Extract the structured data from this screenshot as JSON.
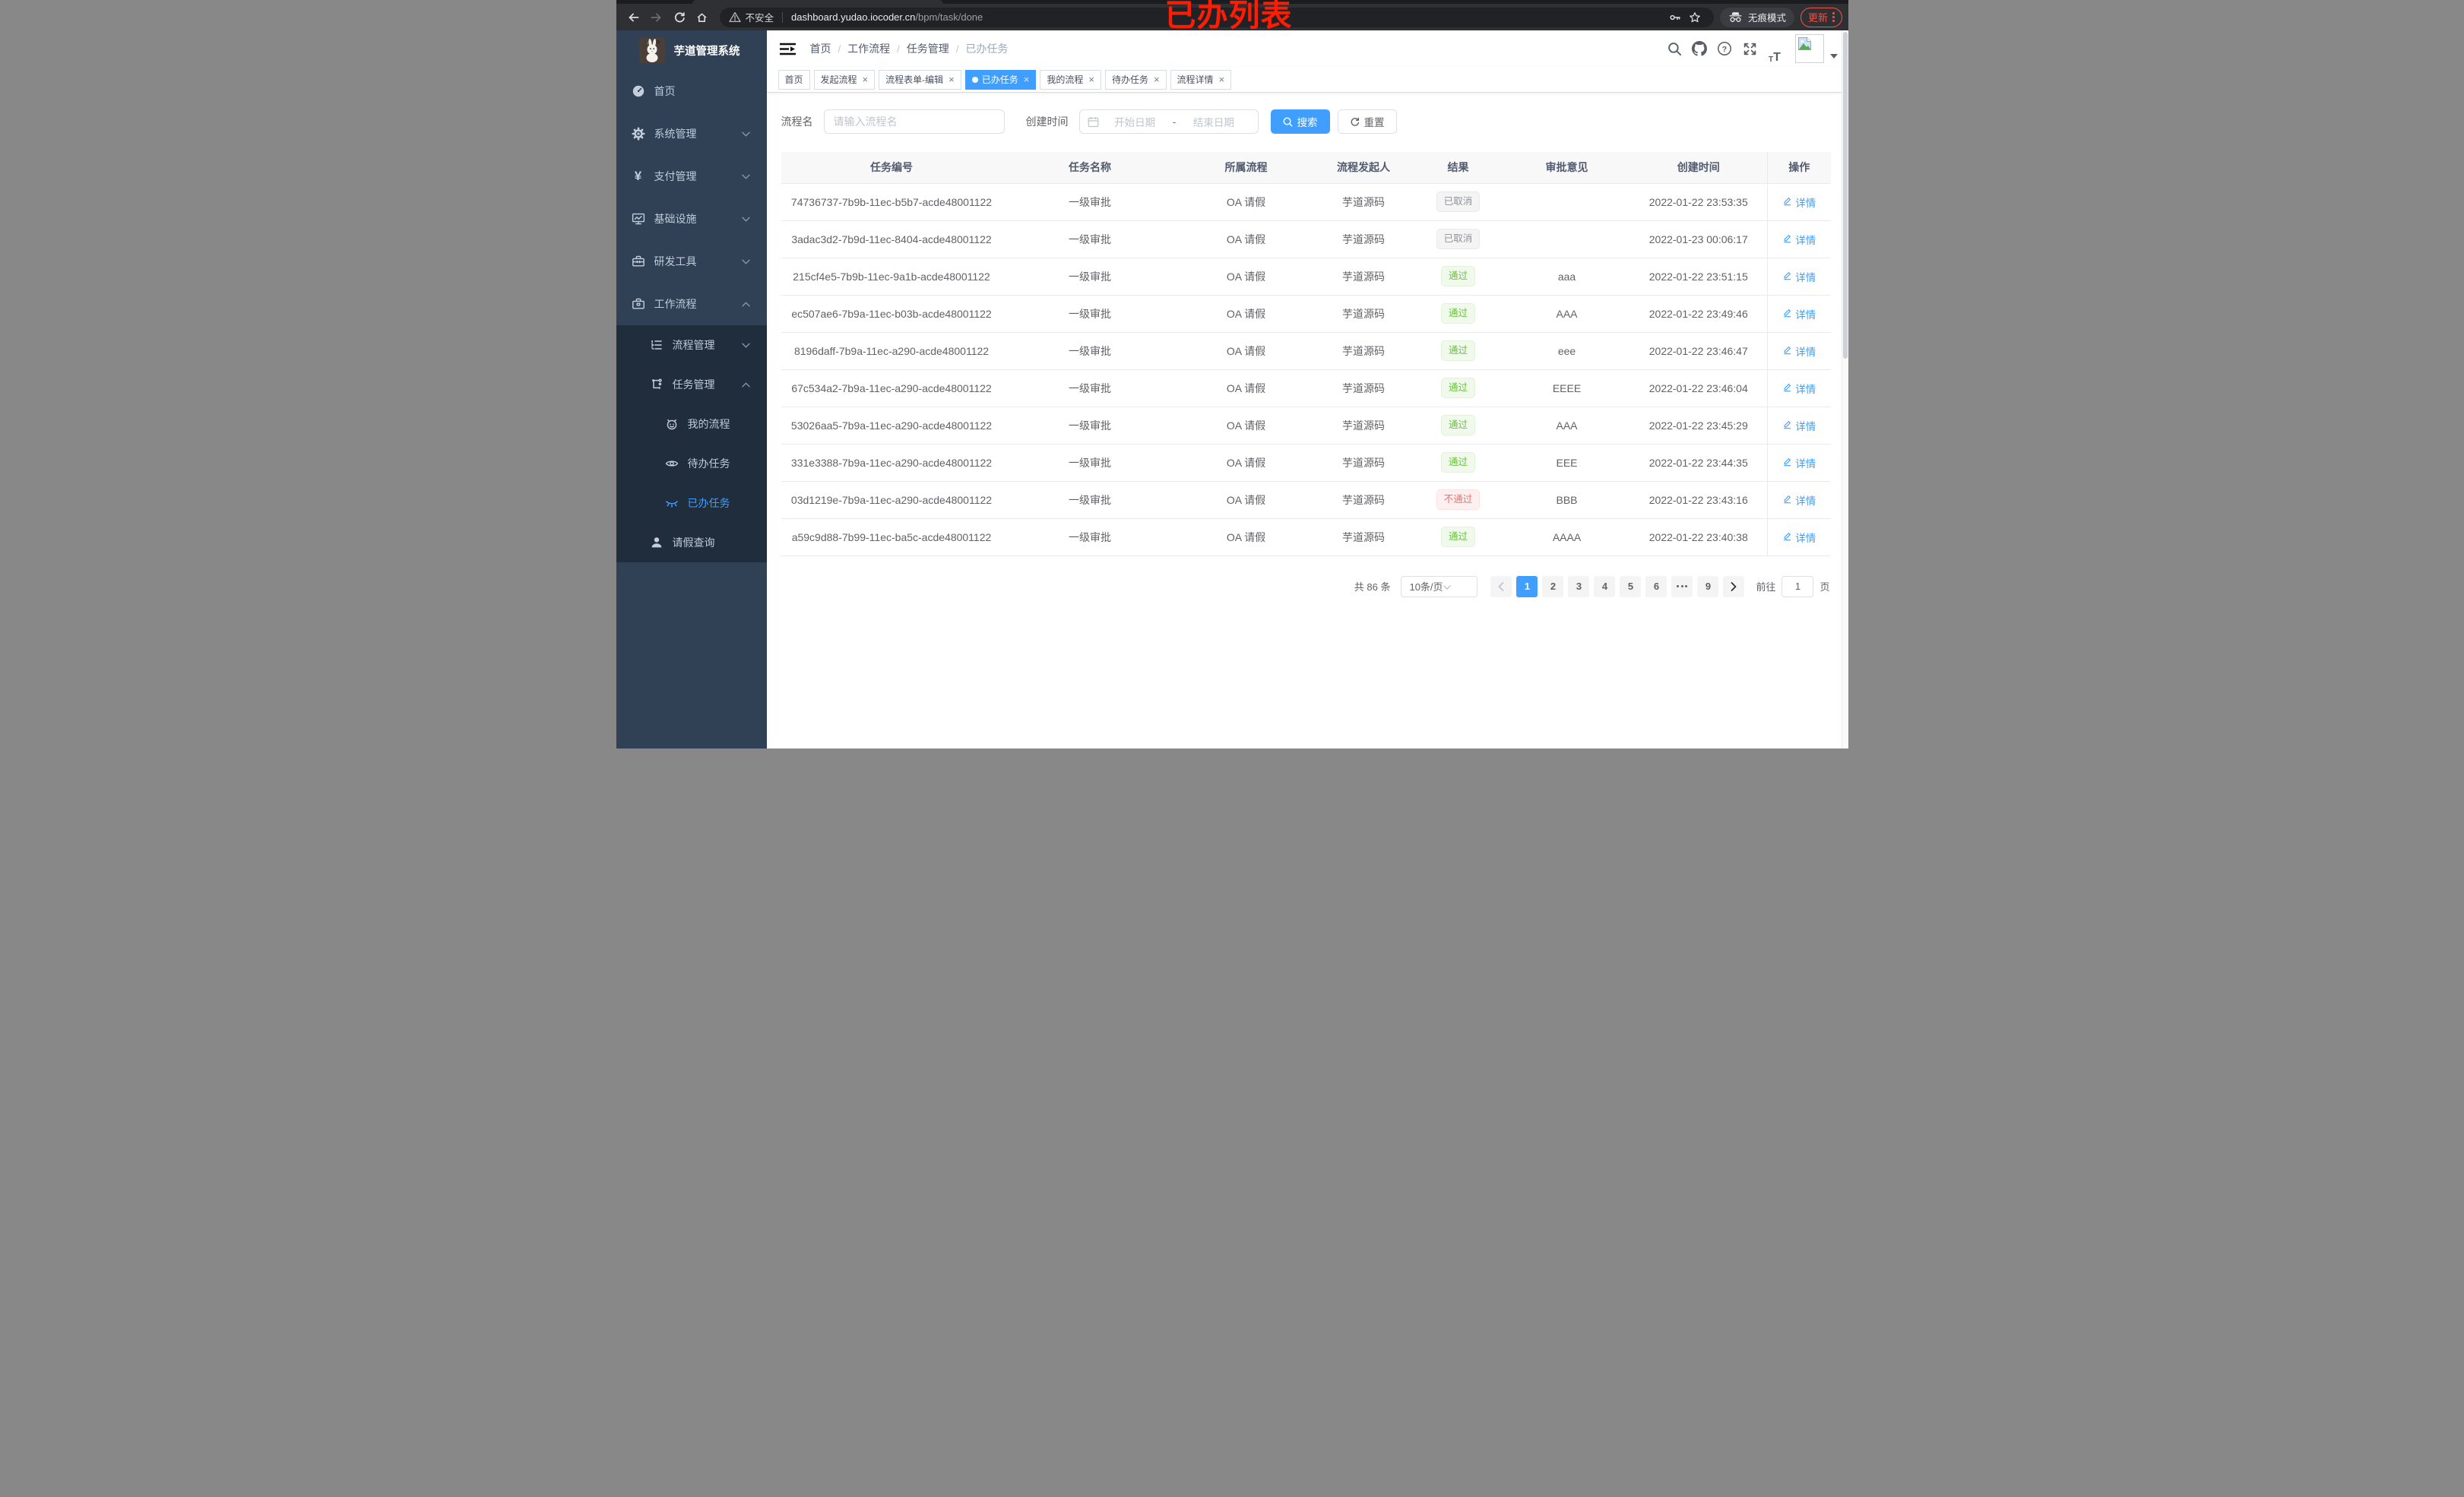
{
  "colors": {
    "accent": "#409eff",
    "sidebar_bg": "#304156",
    "sidebar_submenu_bg": "#1f2d3d",
    "success_text": "#67c23a",
    "danger_text": "#f56c6c",
    "info_text": "#909399",
    "annotation_red": "#fe1c02",
    "update_red": "#ff4b3e"
  },
  "annotation": {
    "text": "已办列表"
  },
  "browser": {
    "nav_icons": [
      "back-icon",
      "forward-icon",
      "reload-icon",
      "home-icon"
    ],
    "security_label": "不安全",
    "url_host": "dashboard.yudao.iocoder.cn",
    "url_path": "/bpm/task/done",
    "omnibox_icons": [
      "warning-triangle-icon",
      "key-icon",
      "star-icon"
    ],
    "incognito_label": "无痕模式",
    "update_label": "更新"
  },
  "sidebar": {
    "logo_icon": "rabbit-logo",
    "title": "芋道管理系统",
    "items": [
      {
        "key": "home",
        "label": "首页",
        "icon": "dashboard-icon",
        "level": 1,
        "chevron": null,
        "dark": false,
        "active": false
      },
      {
        "key": "system",
        "label": "系统管理",
        "icon": "gear-icon",
        "level": 1,
        "chevron": "down",
        "dark": false,
        "active": false
      },
      {
        "key": "payment",
        "label": "支付管理",
        "icon": "yen-icon",
        "level": 1,
        "chevron": "down",
        "dark": false,
        "active": false
      },
      {
        "key": "infra",
        "label": "基础设施",
        "icon": "monitor-icon",
        "level": 1,
        "chevron": "down",
        "dark": false,
        "active": false
      },
      {
        "key": "devtools",
        "label": "研发工具",
        "icon": "toolbox-icon",
        "level": 1,
        "chevron": "down",
        "dark": false,
        "active": false
      },
      {
        "key": "workflow",
        "label": "工作流程",
        "icon": "briefcase-icon",
        "level": 1,
        "chevron": "up",
        "dark": false,
        "active": false
      },
      {
        "key": "process-mgmt",
        "label": "流程管理",
        "icon": "list-tree-icon",
        "level": 2,
        "chevron": "down",
        "dark": true,
        "active": false
      },
      {
        "key": "task-mgmt",
        "label": "任务管理",
        "icon": "flow-icon",
        "level": 2,
        "chevron": "up",
        "dark": true,
        "active": false
      },
      {
        "key": "my-process",
        "label": "我的流程",
        "icon": "robot-icon",
        "level": 3,
        "chevron": null,
        "dark": true,
        "active": false
      },
      {
        "key": "todo-tasks",
        "label": "待办任务",
        "icon": "eye-icon",
        "level": 3,
        "chevron": null,
        "dark": true,
        "active": false
      },
      {
        "key": "done-tasks",
        "label": "已办任务",
        "icon": "eye-off-icon",
        "level": 3,
        "chevron": null,
        "dark": true,
        "active": true
      },
      {
        "key": "leave-query",
        "label": "请假查询",
        "icon": "user-icon",
        "level": 2,
        "chevron": null,
        "dark": true,
        "active": false
      }
    ]
  },
  "navbar": {
    "breadcrumb": [
      "首页",
      "工作流程",
      "任务管理",
      "已办任务"
    ],
    "right_icons": [
      "search-icon",
      "github-icon",
      "question-icon",
      "fullscreen-icon",
      "font-size-icon"
    ]
  },
  "tabs": [
    {
      "label": "首页",
      "closable": false,
      "active": false
    },
    {
      "label": "发起流程",
      "closable": true,
      "active": false
    },
    {
      "label": "流程表单-编辑",
      "closable": true,
      "active": false
    },
    {
      "label": "已办任务",
      "closable": true,
      "active": true
    },
    {
      "label": "我的流程",
      "closable": true,
      "active": false
    },
    {
      "label": "待办任务",
      "closable": true,
      "active": false
    },
    {
      "label": "流程详情",
      "closable": true,
      "active": false
    }
  ],
  "filters": {
    "name_label": "流程名",
    "name_placeholder": "请输入流程名",
    "time_label": "创建时间",
    "start_placeholder": "开始日期",
    "range_separator": "-",
    "end_placeholder": "结束日期",
    "search_label": "搜索",
    "reset_label": "重置"
  },
  "table": {
    "columns": [
      "任务编号",
      "任务名称",
      "所属流程",
      "流程发起人",
      "结果",
      "审批意见",
      "创建时间",
      "操作"
    ],
    "detail_label": "详情",
    "rows": [
      {
        "id": "74736737-7b9b-11ec-b5b7-acde48001122",
        "name": "一级审批",
        "process": "OA 请假",
        "starter": "芋道源码",
        "result": "已取消",
        "result_type": "info",
        "comment": "",
        "created": "2022-01-22 23:53:35"
      },
      {
        "id": "3adac3d2-7b9d-11ec-8404-acde48001122",
        "name": "一级审批",
        "process": "OA 请假",
        "starter": "芋道源码",
        "result": "已取消",
        "result_type": "info",
        "comment": "",
        "created": "2022-01-23 00:06:17"
      },
      {
        "id": "215cf4e5-7b9b-11ec-9a1b-acde48001122",
        "name": "一级审批",
        "process": "OA 请假",
        "starter": "芋道源码",
        "result": "通过",
        "result_type": "success",
        "comment": "aaa",
        "created": "2022-01-22 23:51:15"
      },
      {
        "id": "ec507ae6-7b9a-11ec-b03b-acde48001122",
        "name": "一级审批",
        "process": "OA 请假",
        "starter": "芋道源码",
        "result": "通过",
        "result_type": "success",
        "comment": "AAA",
        "created": "2022-01-22 23:49:46"
      },
      {
        "id": "8196daff-7b9a-11ec-a290-acde48001122",
        "name": "一级审批",
        "process": "OA 请假",
        "starter": "芋道源码",
        "result": "通过",
        "result_type": "success",
        "comment": "eee",
        "created": "2022-01-22 23:46:47"
      },
      {
        "id": "67c534a2-7b9a-11ec-a290-acde48001122",
        "name": "一级审批",
        "process": "OA 请假",
        "starter": "芋道源码",
        "result": "通过",
        "result_type": "success",
        "comment": "EEEE",
        "created": "2022-01-22 23:46:04"
      },
      {
        "id": "53026aa5-7b9a-11ec-a290-acde48001122",
        "name": "一级审批",
        "process": "OA 请假",
        "starter": "芋道源码",
        "result": "通过",
        "result_type": "success",
        "comment": "AAA",
        "created": "2022-01-22 23:45:29"
      },
      {
        "id": "331e3388-7b9a-11ec-a290-acde48001122",
        "name": "一级审批",
        "process": "OA 请假",
        "starter": "芋道源码",
        "result": "通过",
        "result_type": "success",
        "comment": "EEE",
        "created": "2022-01-22 23:44:35"
      },
      {
        "id": "03d1219e-7b9a-11ec-a290-acde48001122",
        "name": "一级审批",
        "process": "OA 请假",
        "starter": "芋道源码",
        "result": "不通过",
        "result_type": "danger",
        "comment": "BBB",
        "created": "2022-01-22 23:43:16"
      },
      {
        "id": "a59c9d88-7b99-11ec-ba5c-acde48001122",
        "name": "一级审批",
        "process": "OA 请假",
        "starter": "芋道源码",
        "result": "通过",
        "result_type": "success",
        "comment": "AAAA",
        "created": "2022-01-22 23:40:38"
      }
    ]
  },
  "pagination": {
    "total_text": "共 86 条",
    "page_size_label": "10条/页",
    "pages": [
      "1",
      "2",
      "3",
      "4",
      "5",
      "6",
      "ellipsis",
      "9"
    ],
    "active_page": "1",
    "goto_label": "前往",
    "goto_value": "1",
    "page_suffix": "页"
  }
}
